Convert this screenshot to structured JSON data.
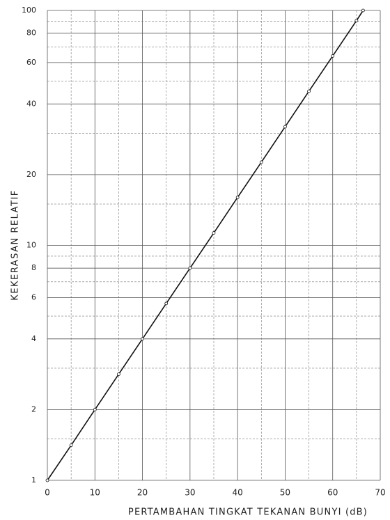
{
  "chart_data": {
    "type": "line",
    "x_label": "PERTAMBAHAN TINGKAT TEKANAN BUNYI (dB)",
    "y_label": "KEKERASAN RELATIF",
    "series": [
      {
        "color": "#111111",
        "x": [
          0,
          5,
          10,
          15,
          20,
          25,
          30,
          35,
          40,
          45,
          50,
          55,
          60,
          65,
          66.4
        ],
        "values": [
          1,
          1.41,
          2,
          2.83,
          4,
          5.66,
          8,
          11.3,
          16,
          22.6,
          32,
          45.3,
          64,
          90.5,
          100
        ]
      }
    ],
    "xlim": [
      0,
      70
    ],
    "xticks": [
      0,
      10,
      20,
      30,
      40,
      50,
      60,
      70
    ],
    "x_minor_grid": [
      5,
      15,
      25,
      35,
      45,
      55,
      65
    ],
    "ylim": [
      1,
      100
    ],
    "y_log": true,
    "yticks": [
      1,
      2,
      4,
      6,
      8,
      10,
      20,
      40,
      60,
      80,
      100
    ],
    "y_minor_grid": [
      1.5,
      3,
      5,
      7,
      9,
      15,
      30,
      50,
      70,
      90
    ],
    "grid": true
  }
}
